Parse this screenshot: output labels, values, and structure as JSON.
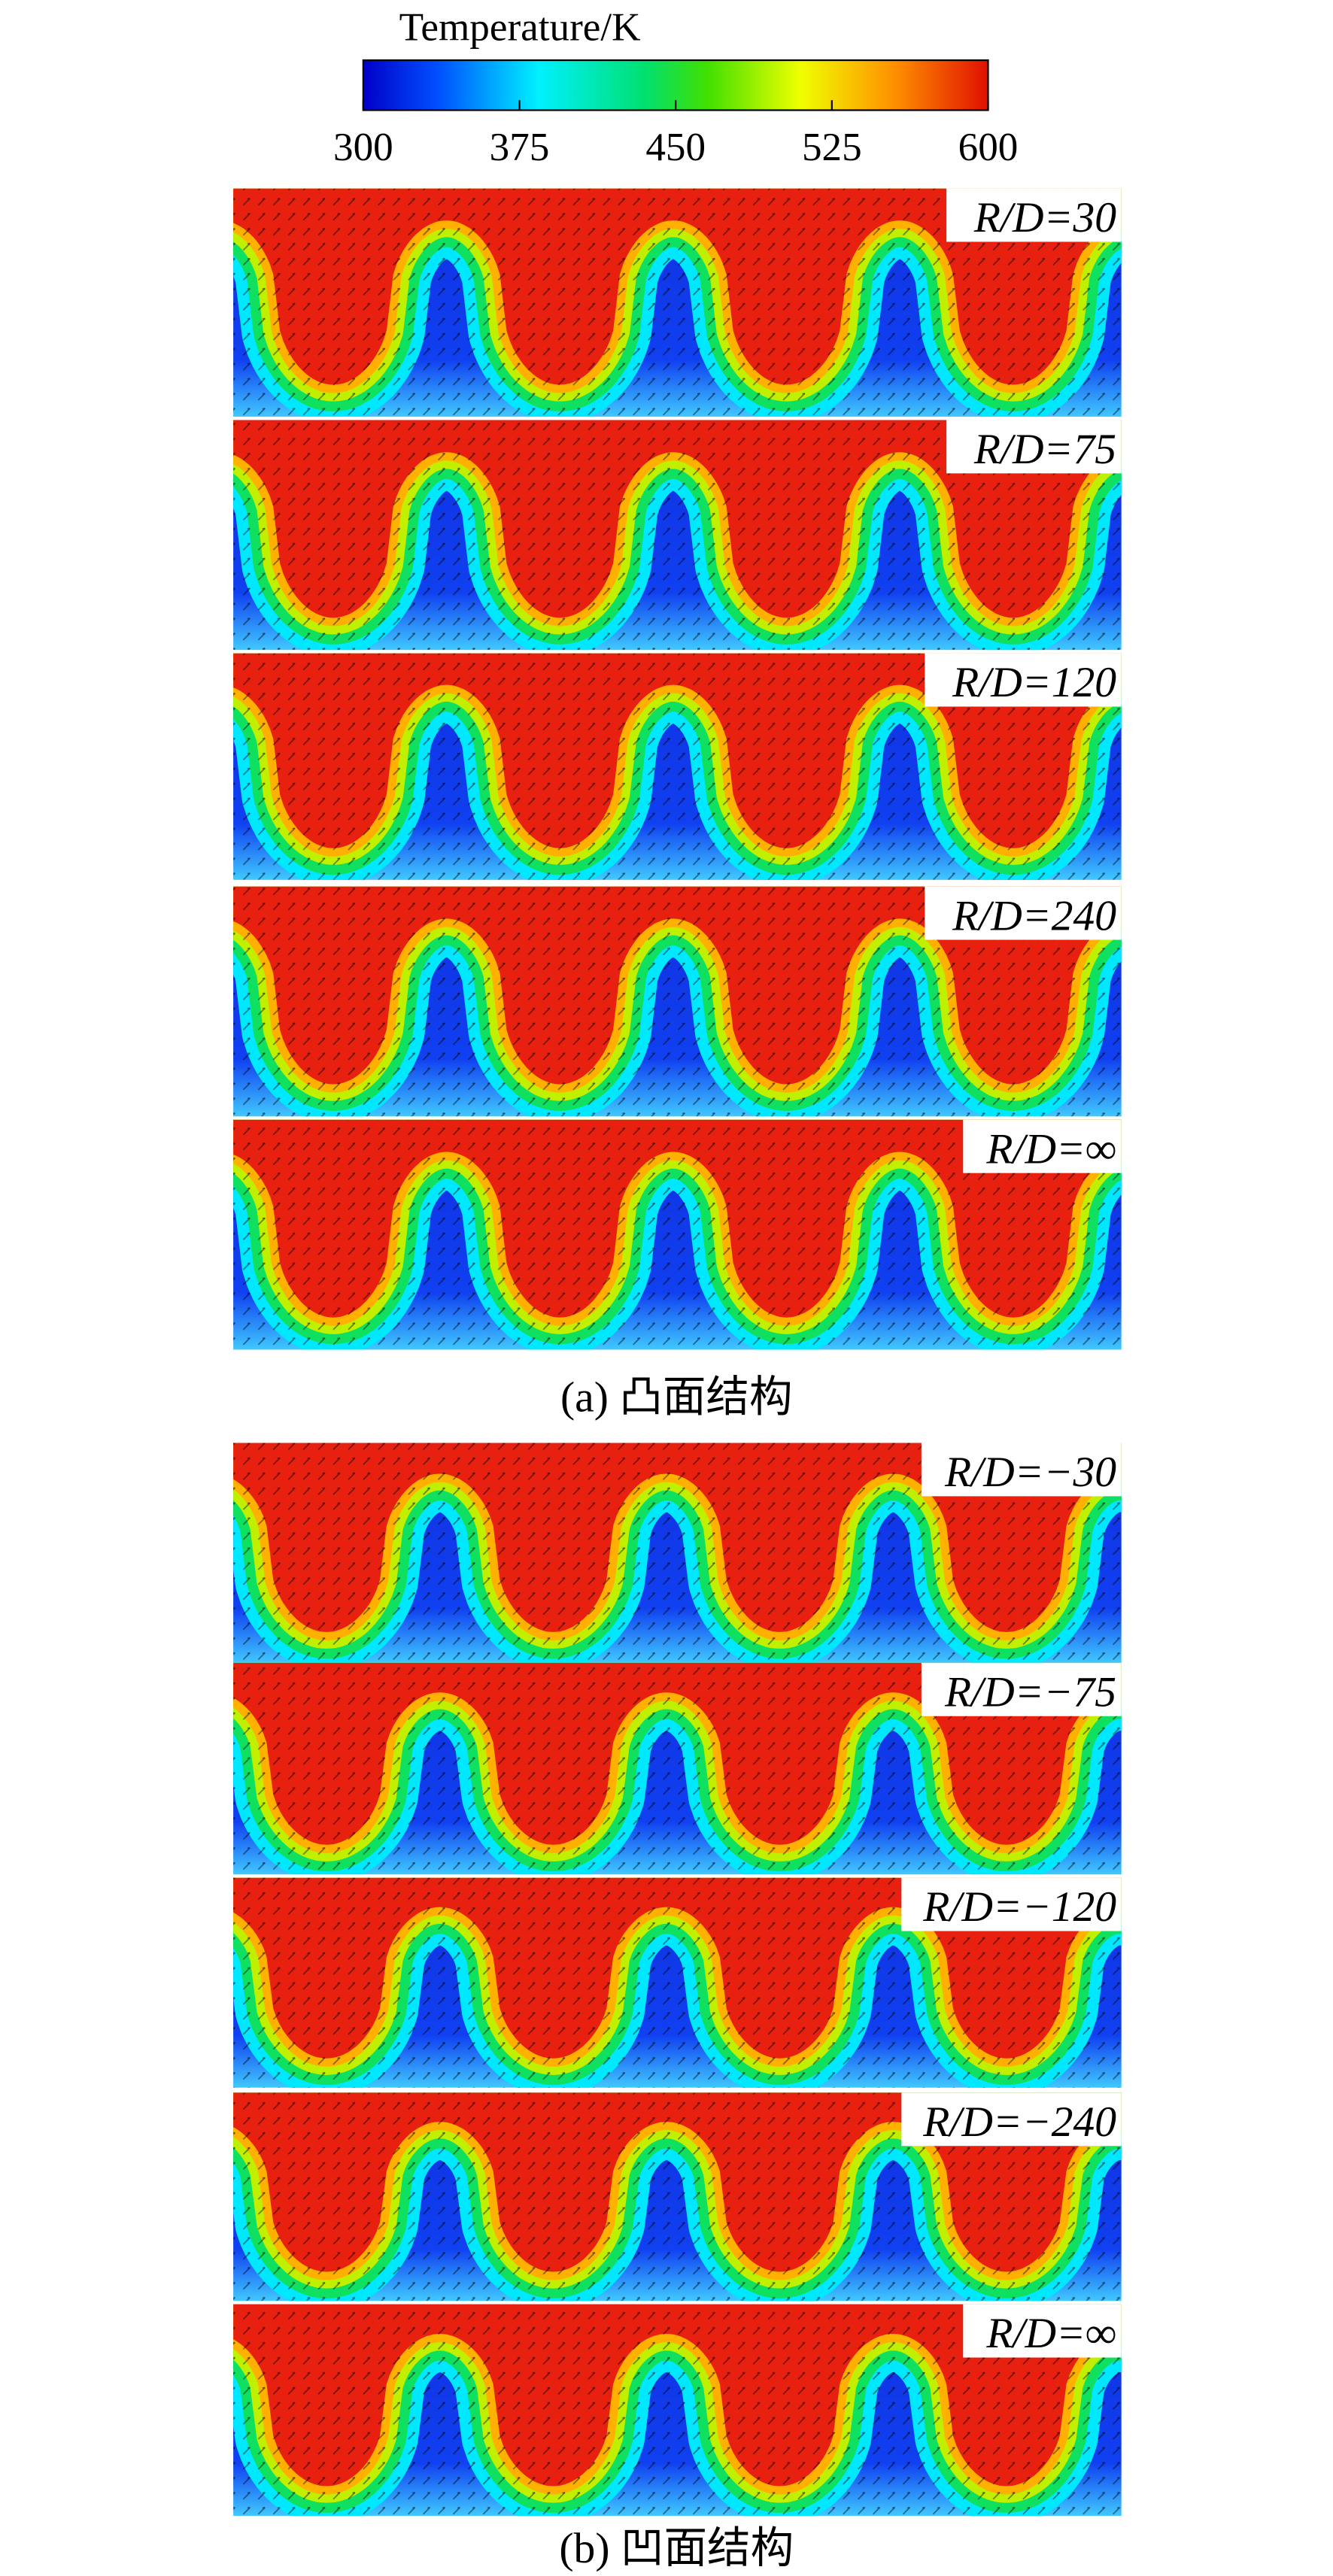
{
  "colorbar": {
    "title": "Temperature/K",
    "ticks": [
      300,
      375,
      450,
      525,
      600
    ]
  },
  "figure_a": {
    "labels": [
      "R/D=30",
      "R/D=75",
      "R/D=120",
      "R/D=240",
      "R/D=∞"
    ],
    "caption": "(a) 凸面结构"
  },
  "figure_b": {
    "labels": [
      "R/D=−30",
      "R/D=−75",
      "R/D=−120",
      "R/D=−240",
      "R/D=∞"
    ],
    "caption": "(b) 凹面结构"
  }
}
